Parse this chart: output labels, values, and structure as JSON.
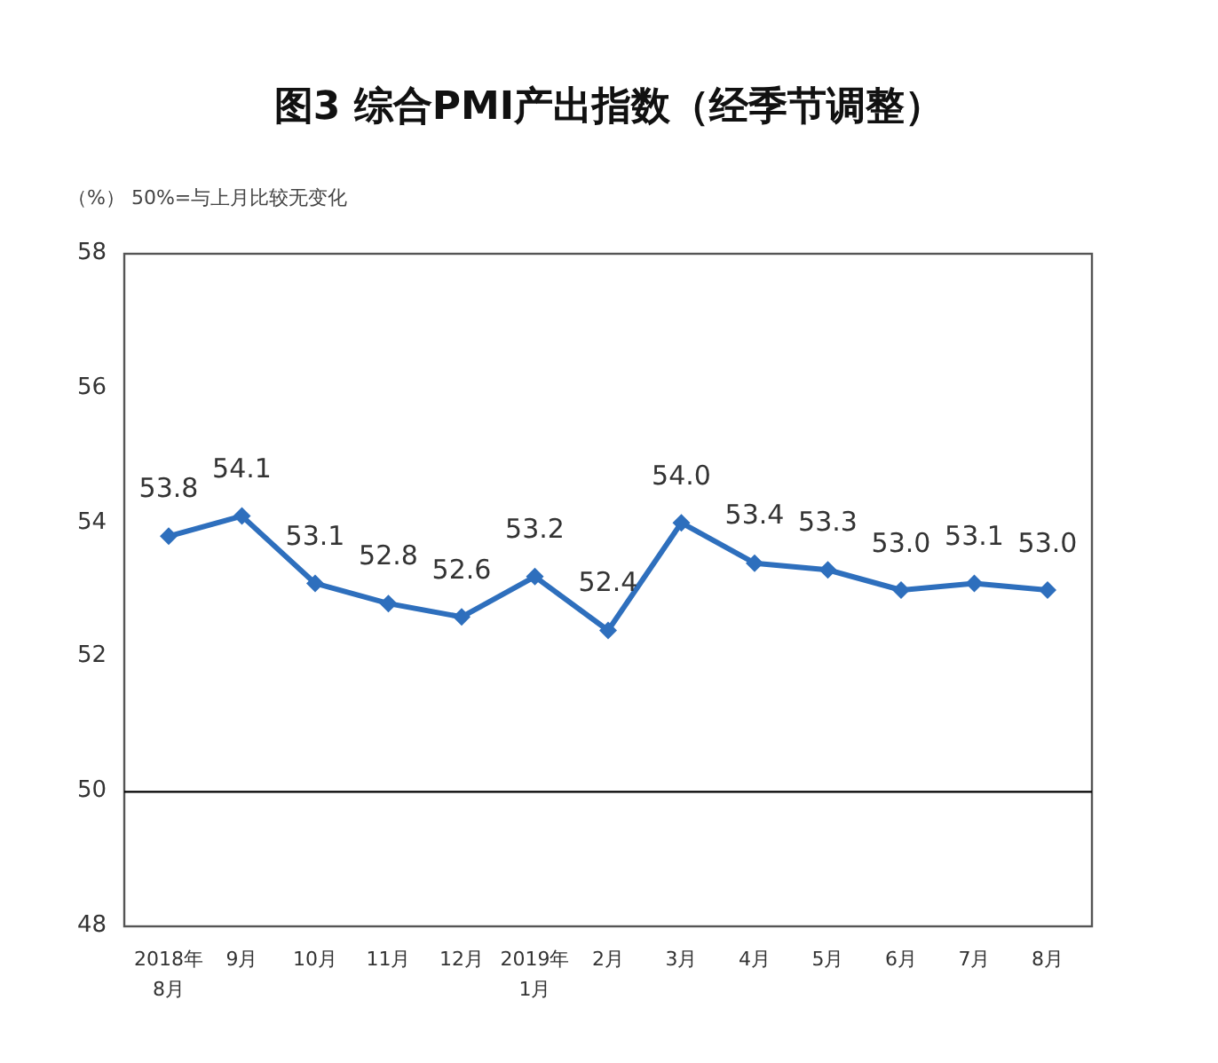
{
  "chart_data": {
    "type": "line",
    "title": "图3 综合PMI产出指数（经季节调整）",
    "annotations": [
      "（%） 50%=与上月比较无变化"
    ],
    "categories": [
      "2018年8月",
      "9月",
      "10月",
      "11月",
      "12月",
      "2019年1月",
      "2月",
      "3月",
      "4月",
      "5月",
      "6月",
      "7月",
      "8月"
    ],
    "series": [
      {
        "color": "#2e6fbd",
        "values": [
          53.8,
          54.1,
          53.1,
          52.8,
          52.6,
          53.2,
          52.4,
          54.0,
          53.4,
          53.3,
          53.0,
          53.1,
          53.0
        ],
        "value_labels": [
          "53.8",
          "54.1",
          "53.1",
          "52.8",
          "52.6",
          "53.2",
          "52.4",
          "54.0",
          "53.4",
          "53.3",
          "53.0",
          "53.1",
          "53.0"
        ]
      }
    ],
    "ylim": [
      48,
      58
    ],
    "yticks": [
      48,
      50,
      52,
      54,
      56,
      58
    ],
    "ref_lines": [
      {
        "axis": "y",
        "value": 50,
        "color": "#000000"
      }
    ],
    "marker": "diamond",
    "grid": false
  }
}
